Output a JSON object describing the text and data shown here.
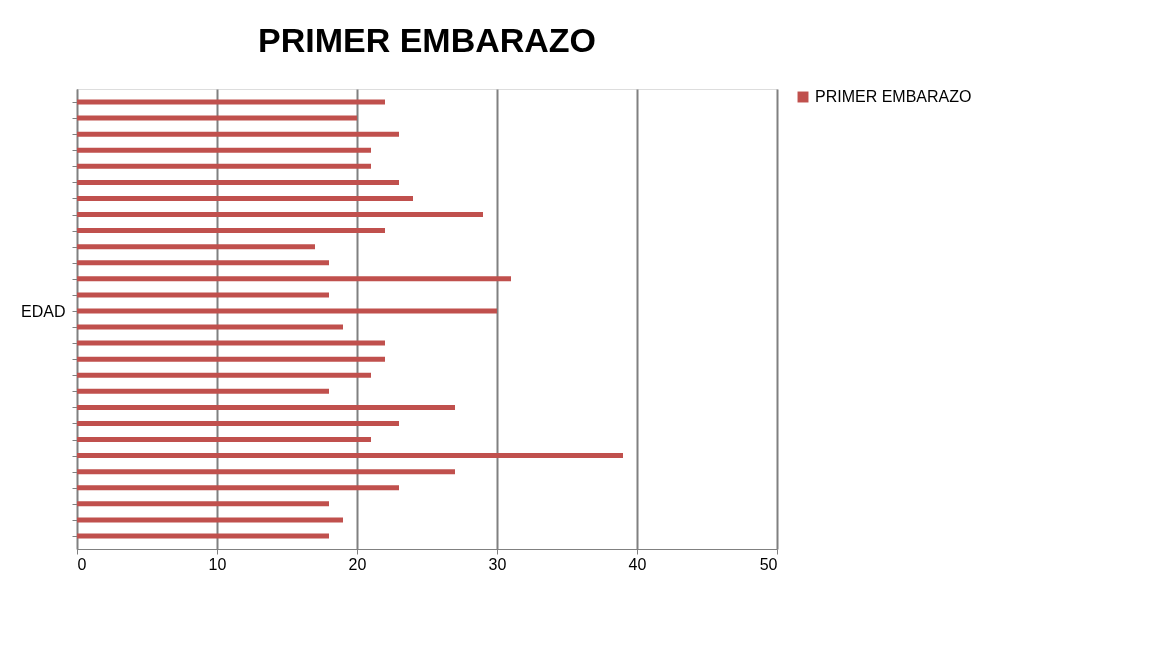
{
  "chart_data": {
    "type": "bar",
    "orientation": "horizontal",
    "title": "PRIMER EMBARAZO",
    "ylabel": "EDAD",
    "categories": [
      null,
      null,
      null,
      null,
      null,
      null,
      null,
      null,
      null,
      null,
      null,
      null,
      null,
      null,
      null,
      null,
      null,
      null,
      null,
      null,
      null,
      null,
      null,
      null,
      null,
      null,
      null,
      null
    ],
    "series": [
      {
        "name": "PRIMER EMBARAZO",
        "color": "#c0504d",
        "values": [
          22,
          20,
          23,
          21,
          21,
          23,
          24,
          29,
          22,
          17,
          18,
          31,
          18,
          30,
          19,
          22,
          22,
          21,
          18,
          27,
          23,
          21,
          39,
          27,
          23,
          18,
          19,
          18
        ]
      }
    ],
    "xlim": [
      0,
      50
    ],
    "xticks": [
      0,
      10,
      20,
      30,
      40,
      50
    ],
    "grid": "x",
    "legend": "right"
  }
}
